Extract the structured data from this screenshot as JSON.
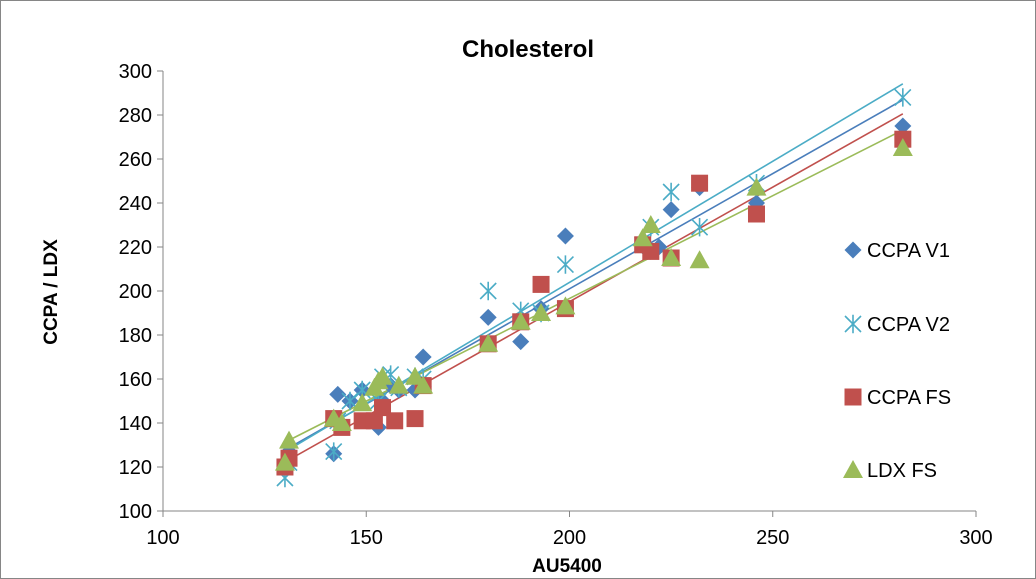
{
  "chart_data": {
    "type": "scatter",
    "title": "Cholesterol",
    "xlabel": "AU5400",
    "ylabel": "CCPA / LDX",
    "xlim": [
      100,
      300
    ],
    "ylim": [
      100,
      300
    ],
    "xticks": [
      100,
      150,
      200,
      250,
      300
    ],
    "yticks": [
      100,
      120,
      140,
      160,
      180,
      200,
      220,
      240,
      260,
      280,
      300
    ],
    "grid": false,
    "legend_position": "right",
    "trendlines": true,
    "series": [
      {
        "name": "CCPA V1",
        "marker": "diamond",
        "color": "#4A7EBB",
        "points": [
          [
            130,
            120
          ],
          [
            131,
            127
          ],
          [
            142,
            126
          ],
          [
            143,
            153
          ],
          [
            146,
            150
          ],
          [
            149,
            155
          ],
          [
            153,
            138
          ],
          [
            154,
            150
          ],
          [
            156,
            157
          ],
          [
            158,
            155
          ],
          [
            162,
            155
          ],
          [
            164,
            170
          ],
          [
            180,
            188
          ],
          [
            188,
            177
          ],
          [
            193,
            192
          ],
          [
            199,
            225
          ],
          [
            218,
            222
          ],
          [
            220,
            218
          ],
          [
            222,
            220
          ],
          [
            225,
            237
          ],
          [
            232,
            247
          ],
          [
            246,
            240
          ],
          [
            282,
            275
          ]
        ]
      },
      {
        "name": "CCPA V2",
        "marker": "asterisk",
        "color": "#4BACC6",
        "points": [
          [
            130,
            115
          ],
          [
            131,
            122
          ],
          [
            142,
            127
          ],
          [
            143,
            141
          ],
          [
            146,
            150
          ],
          [
            149,
            155
          ],
          [
            153,
            150
          ],
          [
            154,
            161
          ],
          [
            156,
            162
          ],
          [
            158,
            156
          ],
          [
            162,
            161
          ],
          [
            164,
            160
          ],
          [
            180,
            200
          ],
          [
            188,
            191
          ],
          [
            193,
            190
          ],
          [
            199,
            212
          ],
          [
            218,
            221
          ],
          [
            220,
            229
          ],
          [
            225,
            245
          ],
          [
            232,
            229
          ],
          [
            246,
            249
          ],
          [
            282,
            288
          ]
        ]
      },
      {
        "name": "CCPA FS",
        "marker": "square",
        "color": "#C0504D",
        "points": [
          [
            130,
            120
          ],
          [
            131,
            124
          ],
          [
            142,
            142
          ],
          [
            144,
            138
          ],
          [
            149,
            141
          ],
          [
            152,
            141
          ],
          [
            154,
            147
          ],
          [
            157,
            141
          ],
          [
            162,
            142
          ],
          [
            164,
            157
          ],
          [
            180,
            176
          ],
          [
            188,
            186
          ],
          [
            193,
            203
          ],
          [
            199,
            192
          ],
          [
            218,
            221
          ],
          [
            220,
            218
          ],
          [
            225,
            215
          ],
          [
            232,
            249
          ],
          [
            246,
            235
          ],
          [
            282,
            269
          ]
        ]
      },
      {
        "name": "LDX FS",
        "marker": "triangle",
        "color": "#9BBB59",
        "points": [
          [
            130,
            122
          ],
          [
            131,
            132
          ],
          [
            142,
            142
          ],
          [
            144,
            140
          ],
          [
            149,
            149
          ],
          [
            152,
            156
          ],
          [
            153,
            159
          ],
          [
            154,
            161
          ],
          [
            158,
            157
          ],
          [
            162,
            161
          ],
          [
            164,
            157
          ],
          [
            180,
            176
          ],
          [
            188,
            186
          ],
          [
            193,
            190
          ],
          [
            199,
            193
          ],
          [
            218,
            224
          ],
          [
            220,
            230
          ],
          [
            225,
            215
          ],
          [
            232,
            214
          ],
          [
            246,
            247
          ],
          [
            282,
            265
          ]
        ]
      }
    ]
  }
}
